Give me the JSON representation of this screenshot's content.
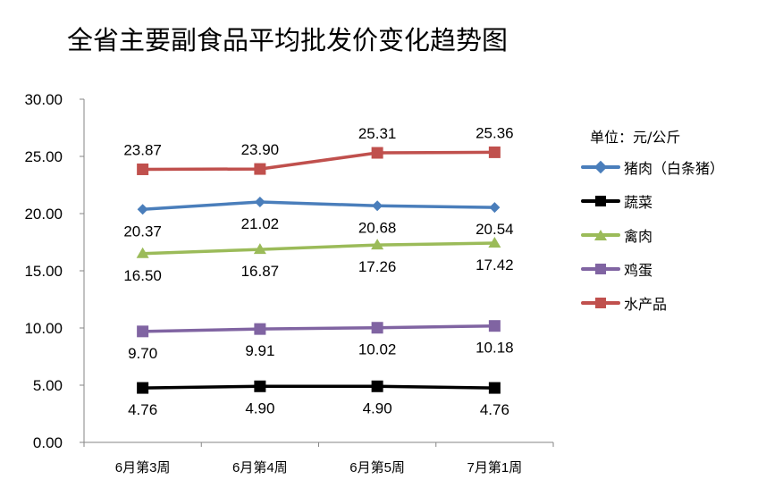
{
  "chart_data": {
    "type": "line",
    "title": "全省主要副食品平均批发价变化趋势图",
    "unit_label": "单位：元/公斤",
    "categories": [
      "6月第3周",
      "6月第4周",
      "6月第5周",
      "7月第1周"
    ],
    "ylim": [
      0,
      30
    ],
    "yticks": [
      "0.00",
      "5.00",
      "10.00",
      "15.00",
      "20.00",
      "25.00",
      "30.00"
    ],
    "legend_position": "right",
    "series": [
      {
        "name": "猪肉（白条猪）",
        "color": "#4a7ebb",
        "marker": "diamond",
        "label_pos": "below",
        "values": [
          20.37,
          21.02,
          20.68,
          20.54
        ],
        "labels": [
          "20.37",
          "21.02",
          "20.68",
          "20.54"
        ]
      },
      {
        "name": "蔬菜",
        "color": "#000000",
        "marker": "square",
        "label_pos": "below",
        "values": [
          4.76,
          4.9,
          4.9,
          4.76
        ],
        "labels": [
          "4.76",
          "4.90",
          "4.90",
          "4.76"
        ]
      },
      {
        "name": "禽肉",
        "color": "#9bbb59",
        "marker": "triangle",
        "label_pos": "below",
        "values": [
          16.5,
          16.87,
          17.26,
          17.42
        ],
        "labels": [
          "16.50",
          "16.87",
          "17.26",
          "17.42"
        ]
      },
      {
        "name": "鸡蛋",
        "color": "#8064a2",
        "marker": "square",
        "label_pos": "below",
        "values": [
          9.7,
          9.91,
          10.02,
          10.18
        ],
        "labels": [
          "9.70",
          "9.91",
          "10.02",
          "10.18"
        ]
      },
      {
        "name": "水产品",
        "color": "#c0504d",
        "marker": "square",
        "label_pos": "above",
        "values": [
          23.87,
          23.9,
          25.31,
          25.36
        ],
        "labels": [
          "23.87",
          "23.90",
          "25.31",
          "25.36"
        ]
      }
    ]
  }
}
